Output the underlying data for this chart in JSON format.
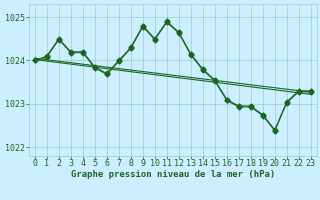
{
  "title": "Graphe pression niveau de la mer (hPa)",
  "bg_color": "#cceeff",
  "grid_color": "#99cccc",
  "line_color": "#1a6620",
  "ylim": [
    1021.8,
    1025.3
  ],
  "xlim": [
    -0.5,
    23.5
  ],
  "yticks": [
    1022,
    1023,
    1024,
    1025
  ],
  "xticks": [
    0,
    1,
    2,
    3,
    4,
    5,
    6,
    7,
    8,
    9,
    10,
    11,
    12,
    13,
    14,
    15,
    16,
    17,
    18,
    19,
    20,
    21,
    22,
    23
  ],
  "s1": [
    1024.0,
    1024.1,
    1024.5,
    1024.2,
    1024.2,
    1023.85,
    1023.7,
    1024.0,
    1024.3,
    1024.8,
    1024.5,
    1024.9,
    1024.65,
    1024.15,
    1023.8,
    1023.55,
    1023.1,
    1022.95,
    1022.95,
    1022.75,
    1022.4,
    1023.05,
    1023.3,
    1023.3
  ],
  "s2": [
    1024.0,
    1024.08,
    1024.48,
    1024.18,
    1024.18,
    1023.83,
    1023.68,
    1023.98,
    1024.28,
    1024.78,
    1024.48,
    1024.88,
    1024.63,
    1024.13,
    1023.78,
    1023.53,
    1023.08,
    1022.93,
    1022.93,
    1022.73,
    1022.38,
    1023.03,
    1023.28,
    1023.28
  ],
  "trend1": [
    1024.05,
    1023.27
  ],
  "trend2": [
    1024.02,
    1023.22
  ],
  "marker_size": 2.5,
  "linewidth": 0.8,
  "font_color": "#1a6620",
  "xlabel_fontsize": 6.5,
  "tick_fontsize": 6
}
